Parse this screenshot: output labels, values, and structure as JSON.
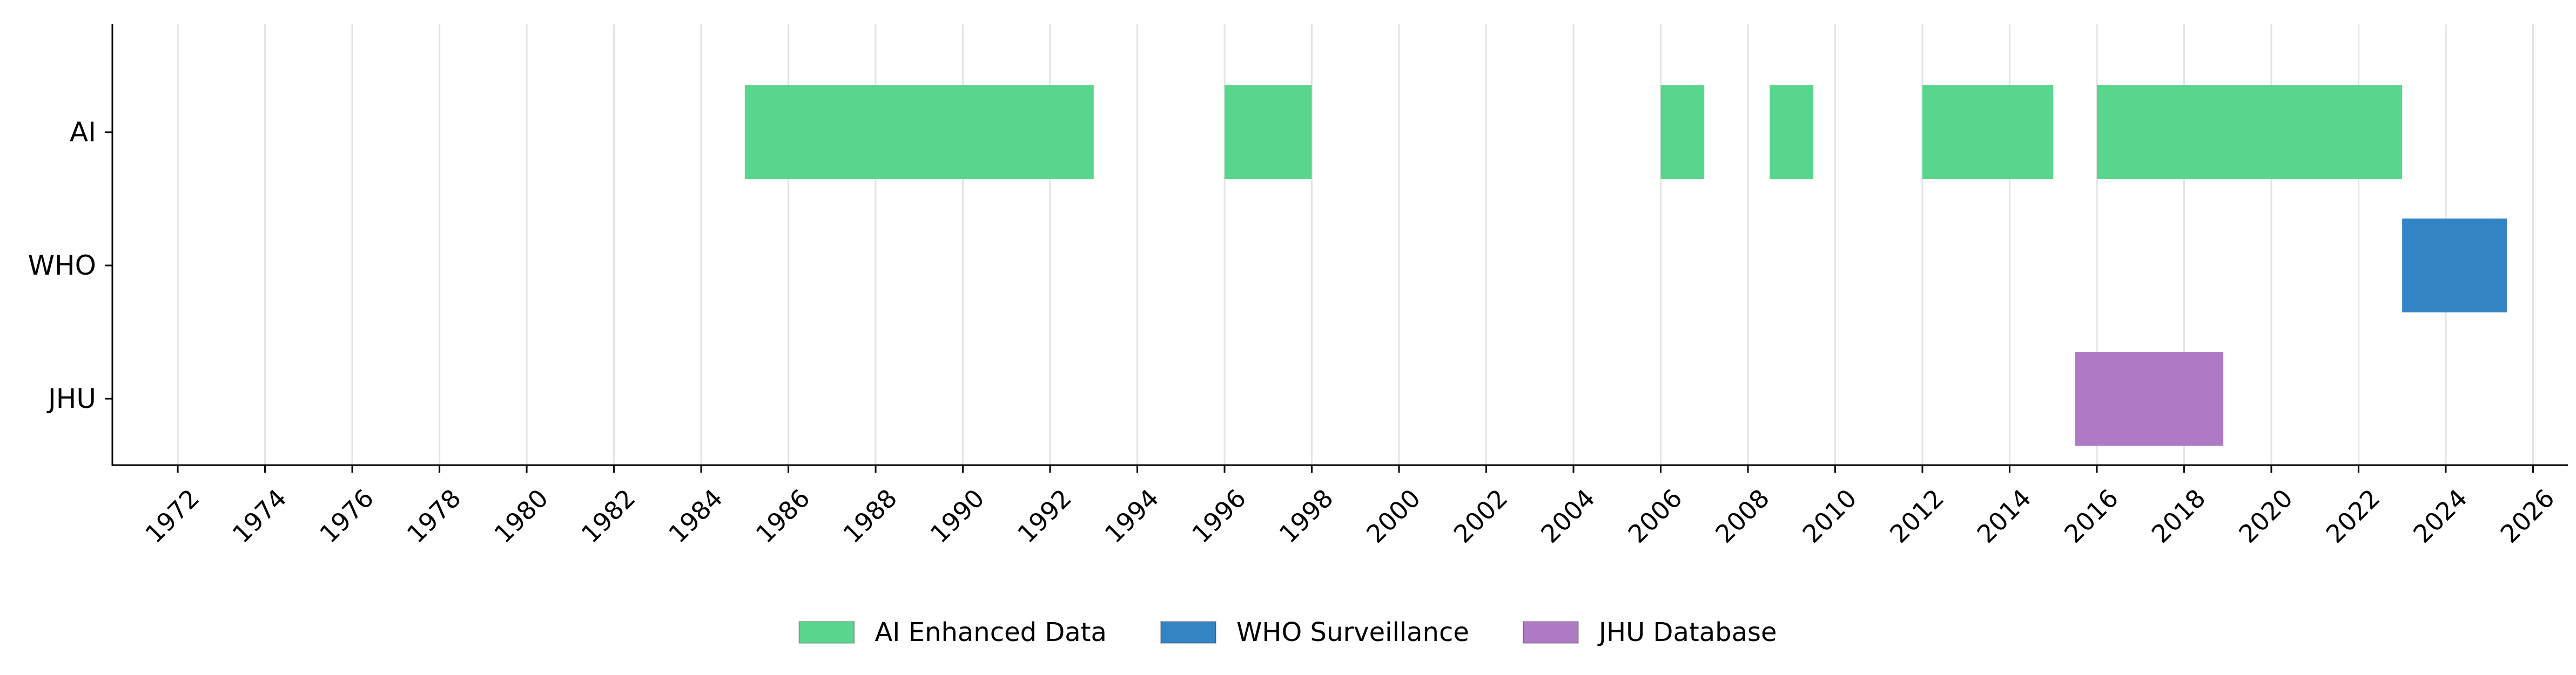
{
  "chart_data": {
    "type": "timeline",
    "title": "",
    "xlabel": "",
    "ylabel": "",
    "categories": [
      "AI",
      "WHO",
      "JHU"
    ],
    "xlim": [
      1970.5,
      2026.8
    ],
    "x_ticks": [
      1972,
      1974,
      1976,
      1978,
      1980,
      1982,
      1984,
      1986,
      1988,
      1990,
      1992,
      1994,
      1996,
      1998,
      2000,
      2002,
      2004,
      2006,
      2008,
      2010,
      2012,
      2014,
      2016,
      2018,
      2020,
      2022,
      2024,
      2026
    ],
    "x_tick_labels": [
      "1972",
      "1974",
      "1976",
      "1978",
      "1980",
      "1982",
      "1984",
      "1986",
      "1988",
      "1990",
      "1992",
      "1994",
      "1996",
      "1998",
      "2000",
      "2002",
      "2004",
      "2006",
      "2008",
      "2010",
      "2012",
      "2014",
      "2016",
      "2018",
      "2020",
      "2022",
      "2024",
      "2026"
    ],
    "grid": "vertical",
    "legend_position": "bottom-center",
    "series": [
      {
        "name": "AI Enhanced Data",
        "category": "AI",
        "color": "#58d68d",
        "intervals": [
          [
            1985.0,
            1993.0
          ],
          [
            1996.0,
            1998.0
          ],
          [
            2006.0,
            2007.0
          ],
          [
            2008.5,
            2009.5
          ],
          [
            2012.0,
            2015.0
          ],
          [
            2016.0,
            2023.0
          ]
        ]
      },
      {
        "name": "WHO Surveillance",
        "category": "WHO",
        "color": "#3384c4",
        "intervals": [
          [
            2023.0,
            2025.4
          ]
        ]
      },
      {
        "name": "JHU Database",
        "category": "JHU",
        "color": "#af7ac5",
        "intervals": [
          [
            2015.5,
            2018.9
          ]
        ]
      }
    ]
  }
}
